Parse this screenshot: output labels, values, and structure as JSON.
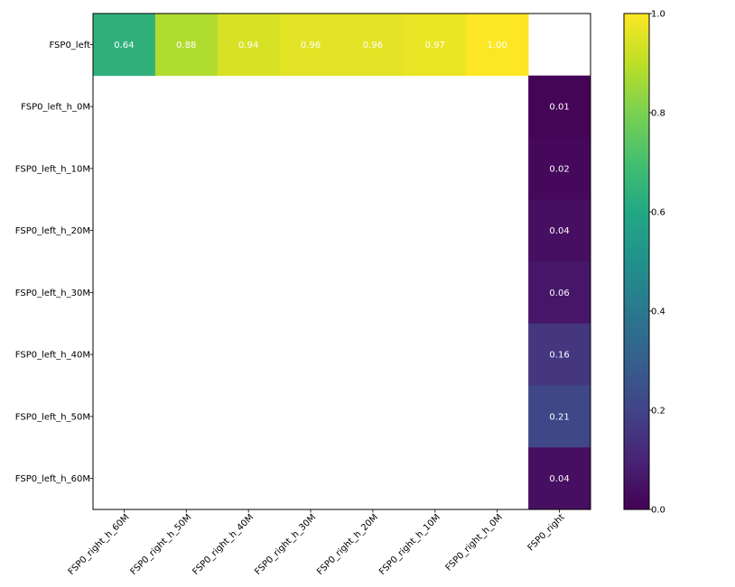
{
  "chart_data": {
    "type": "heatmap",
    "title": "",
    "xlabel": "",
    "ylabel": "",
    "x_categories": [
      "FSP0_right_h_60M",
      "FSP0_right_h_50M",
      "FSP0_right_h_40M",
      "FSP0_right_h_30M",
      "FSP0_right_h_20M",
      "FSP0_right_h_10M",
      "FSP0_right_h_0M",
      "FSP0_right"
    ],
    "y_categories": [
      "FSP0_left",
      "FSP0_left_h_0M",
      "FSP0_left_h_10M",
      "FSP0_left_h_20M",
      "FSP0_left_h_30M",
      "FSP0_left_h_40M",
      "FSP0_left_h_50M",
      "FSP0_left_h_60M"
    ],
    "values": [
      [
        0.64,
        0.88,
        0.94,
        0.96,
        0.96,
        0.97,
        1.0,
        null
      ],
      [
        null,
        null,
        null,
        null,
        null,
        null,
        null,
        0.01
      ],
      [
        null,
        null,
        null,
        null,
        null,
        null,
        null,
        0.02
      ],
      [
        null,
        null,
        null,
        null,
        null,
        null,
        null,
        0.04
      ],
      [
        null,
        null,
        null,
        null,
        null,
        null,
        null,
        0.06
      ],
      [
        null,
        null,
        null,
        null,
        null,
        null,
        null,
        0.16
      ],
      [
        null,
        null,
        null,
        null,
        null,
        null,
        null,
        0.21
      ],
      [
        null,
        null,
        null,
        null,
        null,
        null,
        null,
        0.04
      ]
    ],
    "value_format_decimals": 2,
    "colormap": "viridis",
    "vmin": 0.0,
    "vmax": 1.0,
    "colorbar_ticks": [
      "0.0",
      "0.2",
      "0.4",
      "0.6",
      "0.8",
      "1.0"
    ],
    "grid": false
  }
}
